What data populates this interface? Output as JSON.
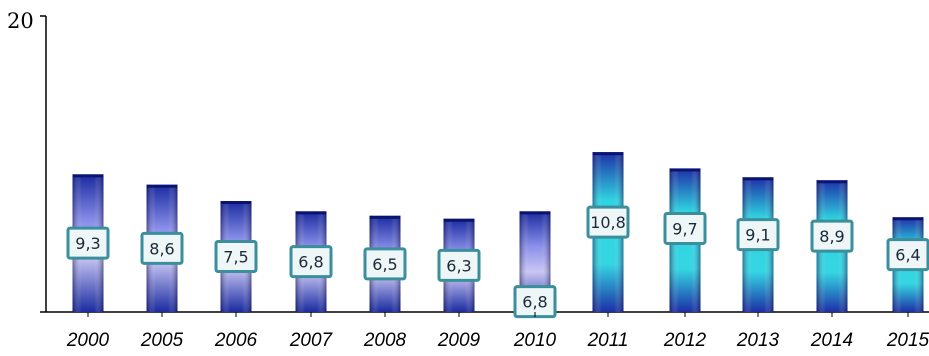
{
  "chart_data": {
    "type": "bar",
    "categories": [
      "2000",
      "2005",
      "2006",
      "2007",
      "2008",
      "2009",
      "2010",
      "2011",
      "2012",
      "2013",
      "2014",
      "2015"
    ],
    "values": [
      9.3,
      8.6,
      7.5,
      6.8,
      6.5,
      6.3,
      6.8,
      10.8,
      9.7,
      9.1,
      8.9,
      6.4
    ],
    "data_labels": [
      "9,3",
      "8,6",
      "7,5",
      "6,8",
      "6,5",
      "6,3",
      "6,8",
      "10,8",
      "9,7",
      "9,1",
      "8,9",
      "6,4"
    ],
    "y_ticks": [
      "20"
    ],
    "ylim": [
      0,
      20
    ],
    "title": "",
    "xlabel": "",
    "ylabel": "",
    "grid": false,
    "colors": {
      "bar_dark": "#1c2fa8",
      "bar_mid": "#8a8fe6",
      "bar_cyan": "#2fd3e0",
      "label_bg": "#eef6f8",
      "label_border": "#3b8f9c"
    }
  }
}
